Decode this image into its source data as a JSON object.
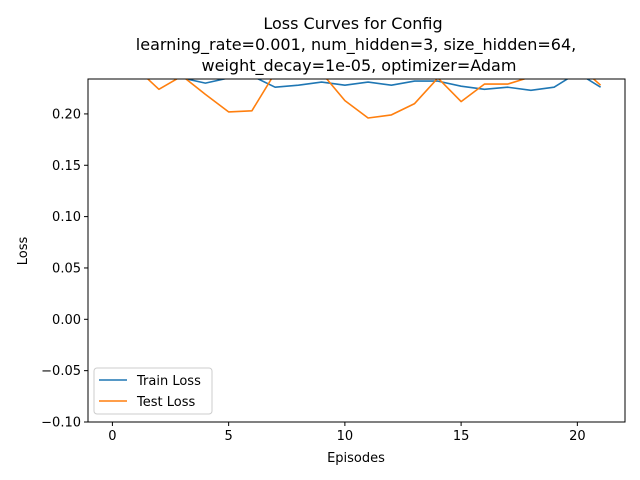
{
  "chart_data": {
    "type": "line",
    "title_lines": [
      "Loss Curves for Config",
      "learning_rate=0.001, num_hidden=3, size_hidden=64,",
      "weight_decay=1e-05, optimizer=Adam"
    ],
    "xlabel": "Episodes",
    "ylabel": "Loss",
    "xlim": [
      -1.05,
      22.05
    ],
    "ylim": [
      -0.1,
      0.234
    ],
    "xticks": [
      0,
      5,
      10,
      15,
      20
    ],
    "xtick_labels": [
      "0",
      "5",
      "10",
      "15",
      "20"
    ],
    "yticks": [
      -0.1,
      -0.05,
      0.0,
      0.05,
      0.1,
      0.15,
      0.2
    ],
    "ytick_labels": [
      "−0.10",
      "−0.05",
      "0.00",
      "0.05",
      "0.10",
      "0.15",
      "0.20"
    ],
    "grid": false,
    "legend_position": "lower-left",
    "series": [
      {
        "name": "Train Loss",
        "color": "#1f77b4",
        "x": [
          0,
          1,
          2,
          3,
          4,
          5,
          6,
          7,
          8,
          9,
          10,
          11,
          12,
          13,
          14,
          15,
          16,
          17,
          18,
          19,
          20,
          21
        ],
        "y": [
          0.255,
          0.25,
          0.245,
          0.235,
          0.23,
          0.235,
          0.237,
          0.226,
          0.228,
          0.231,
          0.228,
          0.231,
          0.228,
          0.232,
          0.232,
          0.227,
          0.224,
          0.226,
          0.223,
          0.226,
          0.24,
          0.226
        ]
      },
      {
        "name": "Test Loss",
        "color": "#ff7f0e",
        "x": [
          0,
          1,
          2,
          3,
          4,
          5,
          6,
          7,
          8,
          9,
          10,
          11,
          12,
          13,
          14,
          15,
          16,
          17,
          18,
          19,
          20,
          21
        ],
        "y": [
          0.26,
          0.245,
          0.224,
          0.237,
          0.219,
          0.202,
          0.203,
          0.24,
          0.25,
          0.24,
          0.213,
          0.196,
          0.199,
          0.21,
          0.235,
          0.212,
          0.229,
          0.229,
          0.236,
          0.246,
          0.248,
          0.228
        ]
      }
    ]
  }
}
